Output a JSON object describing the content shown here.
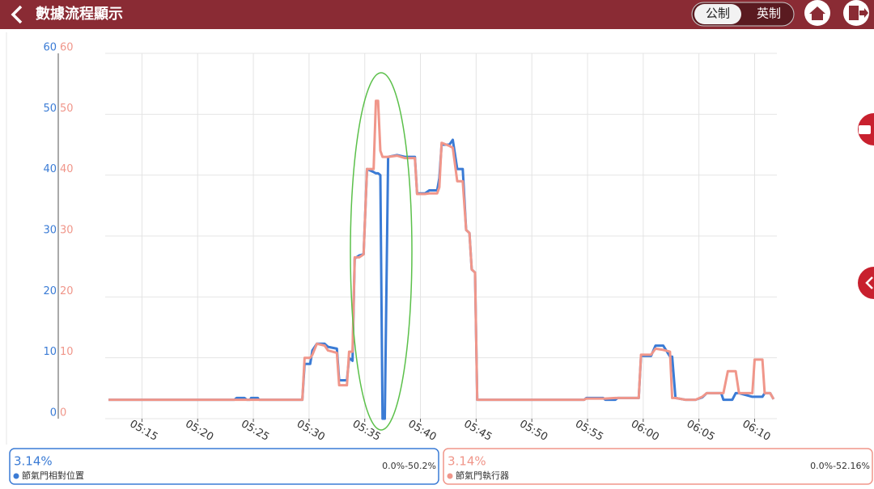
{
  "header": {
    "title": "數據流程顯示",
    "units": [
      "公制",
      "英制"
    ]
  },
  "chart_data": {
    "type": "line",
    "x": [
      312.0,
      323.3,
      323.5,
      324.2,
      324.4,
      324.7,
      324.8,
      325.4,
      325.5,
      329.4,
      329.6,
      330.1,
      330.3,
      330.7,
      331.4,
      331.7,
      332.5,
      332.7,
      333.4,
      333.6,
      333.9,
      334.1,
      334.5,
      334.9,
      335.2,
      335.8,
      336.0,
      336.2,
      336.4,
      336.6,
      336.8,
      337.1,
      337.9,
      338.6,
      339.5,
      339.7,
      340.4,
      340.8,
      341.5,
      341.7,
      341.9,
      342.6,
      342.9,
      343.3,
      343.8,
      344.1,
      344.4,
      344.6,
      344.9,
      345.1,
      354.7,
      354.9,
      356.4,
      356.6,
      357.5,
      357.7,
      359.6,
      359.8,
      360.7,
      361.1,
      361.8,
      362.4,
      362.6,
      362.9,
      363.8,
      364.7,
      365.3,
      365.7,
      367.0,
      367.2,
      367.6,
      368.0,
      368.3,
      368.6,
      369.8,
      370.0,
      370.7,
      370.9,
      371.4,
      371.7
    ],
    "series": [
      {
        "name": "節氣門相對位置",
        "color": "#3a7bd5",
        "values": [
          3.1,
          3.1,
          3.4,
          3.4,
          3.1,
          3.1,
          3.4,
          3.4,
          3.1,
          3.1,
          9.0,
          9.0,
          11.2,
          12.3,
          12.3,
          11.8,
          11.5,
          6.3,
          6.3,
          10.0,
          9.5,
          26.3,
          26.8,
          27.0,
          41.0,
          40.5,
          40.3,
          40.3,
          40.0,
          0,
          0,
          43.0,
          43.3,
          43.0,
          43.0,
          37.0,
          37.0,
          37.5,
          37.5,
          39.5,
          45.0,
          45.0,
          45.8,
          41.0,
          41.0,
          31.0,
          30.5,
          24.5,
          24.0,
          3.1,
          3.1,
          3.4,
          3.4,
          3.1,
          3.1,
          3.4,
          3.4,
          10.3,
          10.3,
          12.0,
          12.0,
          10.2,
          10.2,
          3.4,
          3.1,
          3.1,
          3.5,
          4.2,
          4.2,
          3.1,
          3.1,
          3.1,
          4.2,
          4.2,
          3.6,
          3.6,
          3.6,
          4.2,
          4.2,
          3.2
        ]
      },
      {
        "name": "節氣門執行器",
        "color": "#f0968a",
        "axis": "y2",
        "values": [
          3.1,
          3.1,
          3.1,
          3.1,
          3.1,
          3.1,
          3.1,
          3.1,
          3.1,
          3.1,
          10.0,
          10.0,
          10.5,
          12.3,
          12.0,
          11.2,
          10.8,
          5.5,
          5.5,
          11.0,
          11.0,
          26.5,
          26.5,
          27.0,
          41.0,
          41.0,
          52.2,
          52.2,
          44.0,
          43.0,
          43.0,
          43.0,
          43.2,
          42.8,
          42.8,
          36.9,
          36.9,
          37.0,
          37.0,
          38.0,
          45.3,
          44.8,
          44.5,
          39.0,
          39.0,
          31.0,
          30.5,
          24.5,
          24.0,
          3.1,
          3.1,
          3.3,
          3.3,
          3.3,
          3.4,
          3.4,
          3.4,
          10.5,
          10.5,
          11.5,
          11.3,
          11.0,
          3.4,
          3.4,
          3.1,
          3.1,
          3.6,
          4.2,
          4.2,
          4.2,
          7.8,
          7.8,
          7.8,
          4.2,
          4.2,
          9.7,
          9.7,
          4.2,
          4.2,
          3.2
        ]
      }
    ],
    "xlim": [
      311.7,
      372.0
    ],
    "xticks": [
      {
        "value": 315,
        "label": "05:15"
      },
      {
        "value": 320,
        "label": "05:20"
      },
      {
        "value": 325,
        "label": "05:25"
      },
      {
        "value": 330,
        "label": "05:30"
      },
      {
        "value": 335,
        "label": "05:35"
      },
      {
        "value": 340,
        "label": "05:40"
      },
      {
        "value": 345,
        "label": "05:45"
      },
      {
        "value": 350,
        "label": "05:50"
      },
      {
        "value": 355,
        "label": "05:55"
      },
      {
        "value": 360,
        "label": "06:00"
      },
      {
        "value": 365,
        "label": "06:05"
      },
      {
        "value": 370,
        "label": "06:10"
      }
    ],
    "ylim": [
      0,
      60
    ],
    "yticks": [
      0,
      10,
      20,
      30,
      40,
      50,
      60
    ],
    "y2lim": [
      0,
      60
    ],
    "y2ticks": [
      0,
      10,
      20,
      30,
      40,
      50,
      60
    ],
    "grid": true
  },
  "panels": [
    {
      "current": "3.14%",
      "range": "0.0%-50.2%"
    },
    {
      "current": "3.14%",
      "range": "0.0%-52.16%"
    }
  ]
}
